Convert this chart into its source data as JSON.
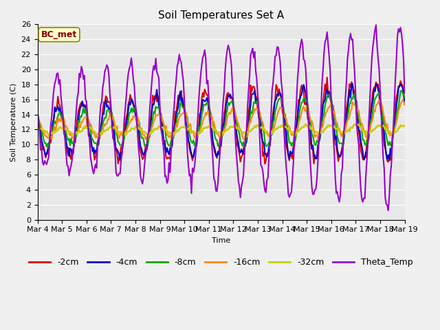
{
  "title": "Soil Temperatures Set A",
  "xlabel": "Time",
  "ylabel": "Soil Temperature (C)",
  "annotation": "BC_met",
  "ylim": [
    0,
    26
  ],
  "yticks": [
    0,
    2,
    4,
    6,
    8,
    10,
    12,
    14,
    16,
    18,
    20,
    22,
    24,
    26
  ],
  "n_days": 15,
  "x_labels": [
    "Mar 4",
    "Mar 5",
    "Mar 6",
    "Mar 7",
    "Mar 8",
    "Mar 9",
    "Mar 10",
    "Mar 11",
    "Mar 12",
    "Mar 13",
    "Mar 14",
    "Mar 15",
    "Mar 16",
    "Mar 17",
    "Mar 18",
    "Mar 19"
  ],
  "series_labels": [
    "-2cm",
    "-4cm",
    "-8cm",
    "-16cm",
    "-32cm",
    "Theta_Temp"
  ],
  "series_colors": [
    "#dd0000",
    "#0000cc",
    "#00aa00",
    "#ff8800",
    "#cccc00",
    "#9900cc"
  ],
  "series_linewidths": [
    1.5,
    1.5,
    1.5,
    1.5,
    2.0,
    1.5
  ],
  "plot_bg_color": "#e8e8e8",
  "fig_bg_color": "#f0f0f0",
  "grid_color": "#ffffff",
  "title_fontsize": 11,
  "axis_fontsize": 8,
  "legend_fontsize": 9,
  "annotation_fontsize": 9,
  "annotation_color": "#880000",
  "annotation_bg": "#ffffcc",
  "annotation_edge": "#888800"
}
